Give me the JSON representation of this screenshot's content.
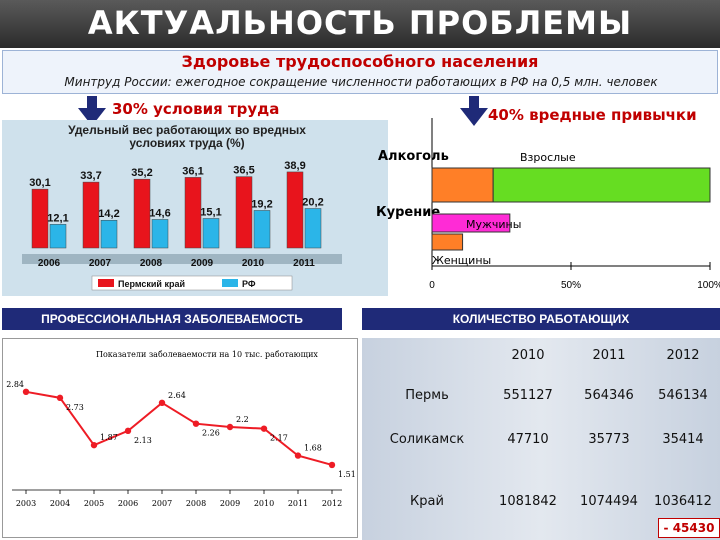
{
  "header": {
    "title": "АКТУАЛЬНОСТЬ ПРОБЛЕМЫ",
    "subtitle": "Здоровье трудоспособного населения",
    "info": "Минтруд России: ежегодное сокращение численности работающих в РФ на 0,5 млн. человек"
  },
  "left_label": "30% условия труда",
  "right_label": "40% вредные привычки",
  "section_occupational": "ПРОФЕССИОНАЛЬНАЯ ЗАБОЛЕВАЕМОСТЬ",
  "section_workers": "КОЛИЧЕСТВО РАБОТАЮЩИХ",
  "colors": {
    "red": "#e8141c",
    "cyan": "#2bb5e8",
    "navy": "#1f2a78",
    "orange": "#ff7f27",
    "green": "#66dd22",
    "magenta": "#ff2bd6"
  },
  "chart_data": [
    {
      "type": "bar",
      "title": "Удельный вес работающих во вредных условиях труда (%)",
      "categories": [
        "2006",
        "2007",
        "2008",
        "2009",
        "2010",
        "2011"
      ],
      "series": [
        {
          "name": "Пермский край",
          "values": [
            30.1,
            33.7,
            35.2,
            36.1,
            36.5,
            38.9
          ]
        },
        {
          "name": "РФ",
          "values": [
            12.1,
            14.2,
            14.6,
            15.1,
            19.2,
            20.2
          ]
        }
      ],
      "ylim": [
        0,
        45
      ]
    },
    {
      "type": "bar",
      "title": "",
      "categories": [
        "Алкоголь",
        "Курение"
      ],
      "category_labels": [
        "Взрослые",
        "Мужчины",
        "Женщины"
      ],
      "segments": [
        {
          "category": "Алкоголь",
          "label": "Взрослые",
          "parts": [
            {
              "color": "#ff7f27",
              "value": 22
            },
            {
              "color": "#66dd22",
              "value": 78
            }
          ]
        },
        {
          "category": "Курение",
          "label": "Мужчины",
          "parts": [
            {
              "color": "#ff2bd6",
              "value": 28
            }
          ]
        },
        {
          "category": "Курение",
          "label": "Женщины",
          "parts": [
            {
              "color": "#ff7f27",
              "value": 11
            }
          ]
        }
      ],
      "x_ticks": [
        "0",
        "50%",
        "100%"
      ],
      "xlim": [
        0,
        100
      ]
    },
    {
      "type": "line",
      "title": "Показатели заболеваемости на 10 тыс. работающих",
      "x": [
        "2003",
        "2004",
        "2005",
        "2006",
        "2007",
        "2008",
        "2009",
        "2010",
        "2011",
        "2012"
      ],
      "values": [
        2.84,
        2.73,
        1.87,
        2.13,
        2.64,
        2.26,
        2.2,
        2.17,
        1.68,
        1.51
      ],
      "point_labels": [
        "2.84",
        "2.73",
        "1.87",
        "2.13",
        "2.64",
        "2.26",
        "2.2",
        "2.17",
        "1.68",
        "1.51"
      ],
      "ylim": [
        1.2,
        3.2
      ]
    }
  ],
  "table": {
    "years": [
      "2010",
      "2011",
      "2012"
    ],
    "rows": [
      {
        "name": "Пермь",
        "values": [
          "551127",
          "564346",
          "546134"
        ]
      },
      {
        "name": "Соликамск",
        "values": [
          "47710",
          "35773",
          "35414"
        ]
      },
      {
        "name": "Край",
        "values": [
          "1081842",
          "1074494",
          "1036412"
        ]
      }
    ],
    "change": "- 45430"
  }
}
